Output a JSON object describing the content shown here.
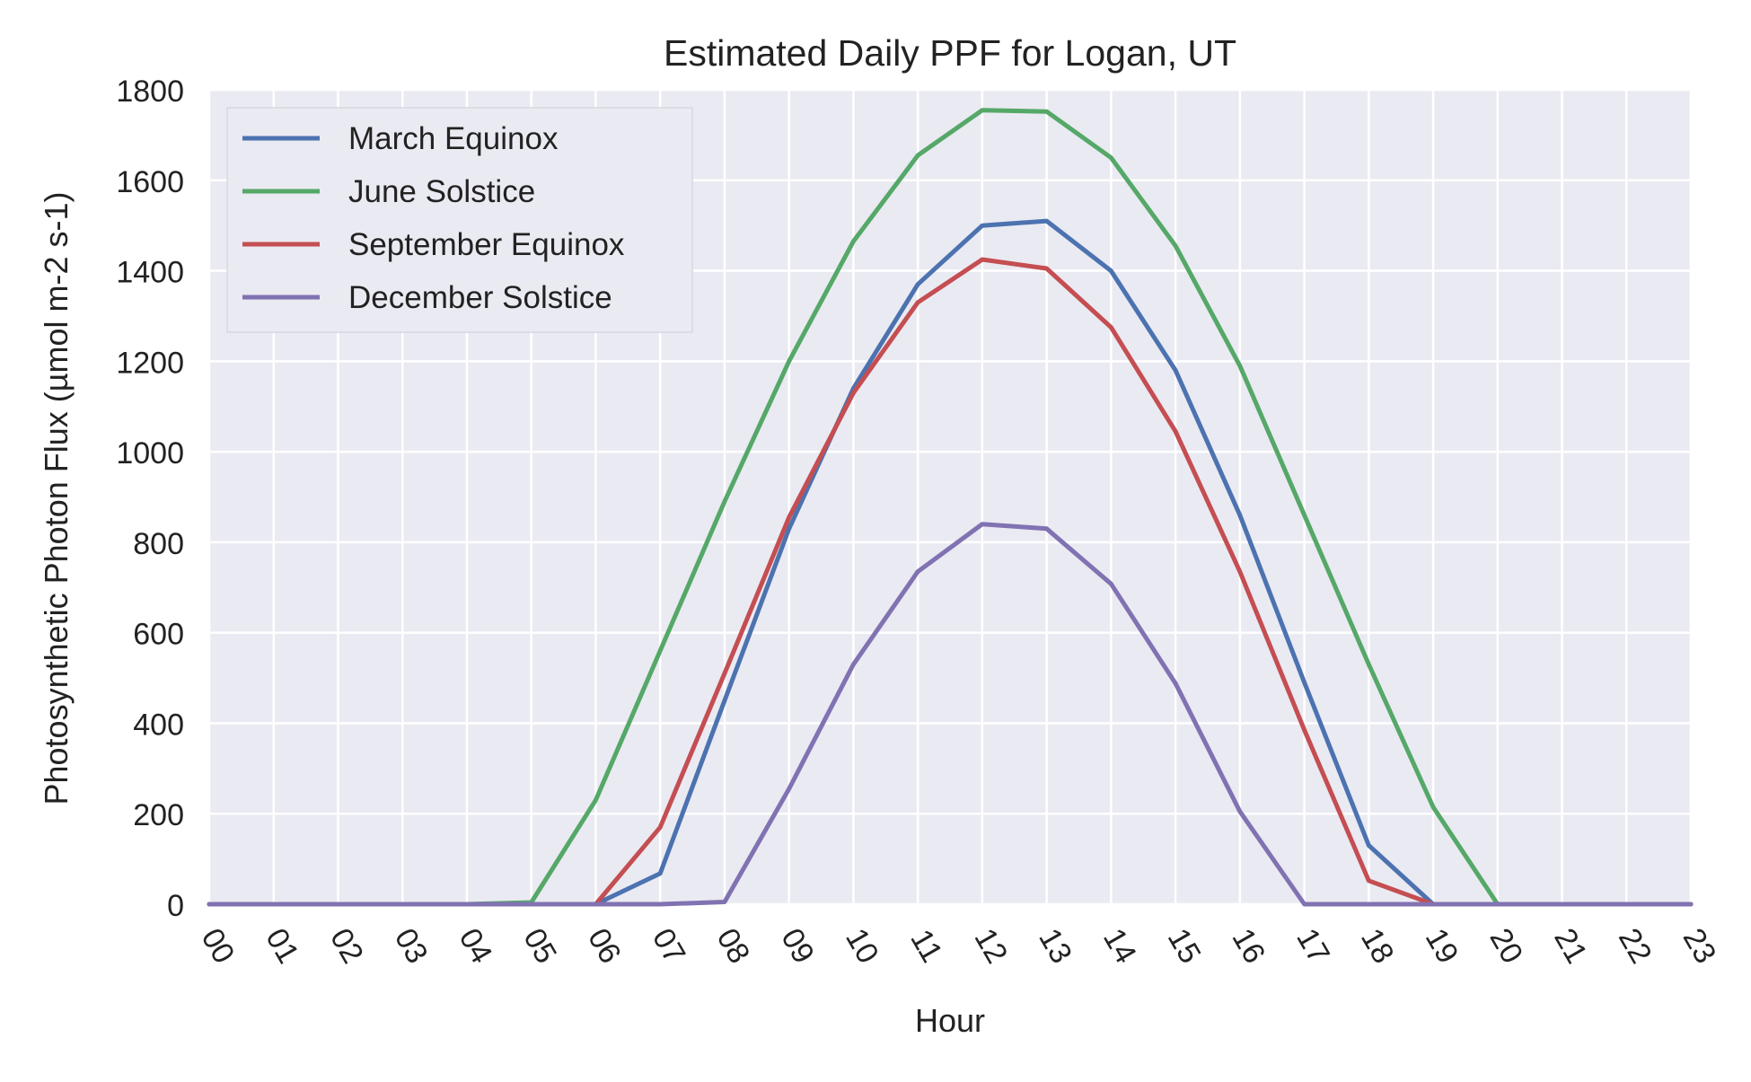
{
  "chart_data": {
    "type": "line",
    "title": "Estimated Daily PPF for Logan, UT",
    "xlabel": "Hour",
    "ylabel": "Photosynthetic Photon Flux (µmol m-2 s-1)",
    "x": [
      "00",
      "01",
      "02",
      "03",
      "04",
      "05",
      "06",
      "07",
      "08",
      "09",
      "10",
      "11",
      "12",
      "13",
      "14",
      "15",
      "16",
      "17",
      "18",
      "19",
      "20",
      "21",
      "22",
      "23"
    ],
    "ylim": [
      0,
      1800
    ],
    "yticks": [
      0,
      200,
      400,
      600,
      800,
      1000,
      1200,
      1400,
      1600,
      1800
    ],
    "grid": true,
    "legend_position": "top-left",
    "series": [
      {
        "name": "March Equinox",
        "color": "#4C72B0",
        "values": [
          0,
          0,
          0,
          0,
          0,
          0,
          0,
          68,
          450,
          830,
          1140,
          1370,
          1500,
          1510,
          1400,
          1180,
          860,
          490,
          130,
          0,
          0,
          0,
          0,
          0
        ]
      },
      {
        "name": "June Solstice",
        "color": "#55A868",
        "values": [
          0,
          0,
          0,
          0,
          0,
          4,
          230,
          560,
          890,
          1200,
          1465,
          1655,
          1755,
          1752,
          1650,
          1455,
          1190,
          860,
          530,
          215,
          0,
          0,
          0,
          0
        ]
      },
      {
        "name": "September Equinox",
        "color": "#C44E52",
        "values": [
          0,
          0,
          0,
          0,
          0,
          0,
          0,
          170,
          510,
          855,
          1130,
          1330,
          1425,
          1405,
          1275,
          1045,
          735,
          385,
          52,
          0,
          0,
          0,
          0,
          0
        ]
      },
      {
        "name": "December Solstice",
        "color": "#8172B2",
        "values": [
          0,
          0,
          0,
          0,
          0,
          0,
          0,
          0,
          5,
          255,
          530,
          735,
          840,
          830,
          708,
          488,
          205,
          0,
          0,
          0,
          0,
          0,
          0,
          0
        ]
      }
    ]
  }
}
